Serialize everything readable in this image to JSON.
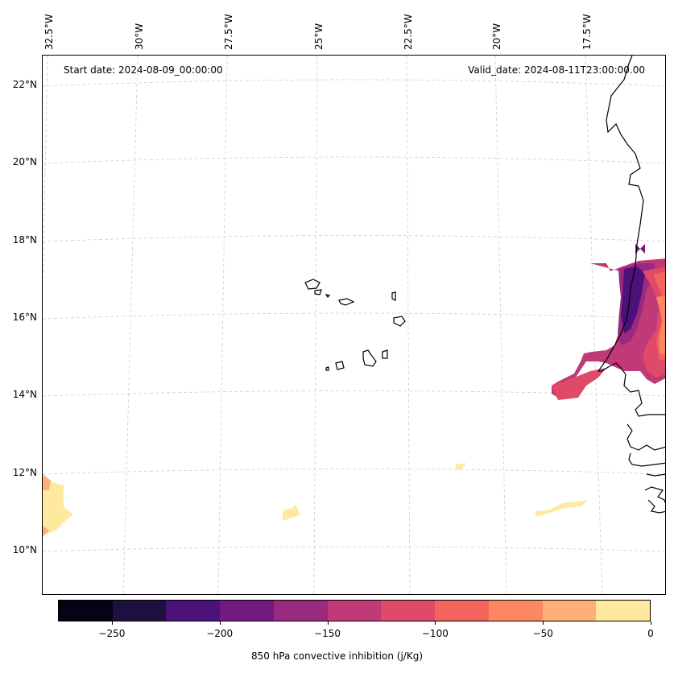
{
  "map": {
    "start_date": "Start date: 2024-08-09_00:00:00",
    "valid_date": "Valid_date: 2024-08-11T23:00:00.00",
    "lon_labels": [
      "32.5°W",
      "30°W",
      "27.5°W",
      "25°W",
      "22.5°W",
      "20°W",
      "17.5°W"
    ],
    "lat_labels": [
      "22°N",
      "20°N",
      "18°N",
      "16°N",
      "14°N",
      "12°N",
      "10°N"
    ],
    "gridlines": true,
    "features": [
      "coastline-west-africa",
      "cape-verde-islands"
    ]
  },
  "colorbar": {
    "label": "850 hPa convective inhibition (j/Kg)",
    "ticks": [
      "−250",
      "−200",
      "−150",
      "−100",
      "−50",
      "0"
    ],
    "range": [
      -275,
      0
    ],
    "step": 25,
    "colors": [
      "#050416",
      "#1e1140",
      "#4d117a",
      "#73197f",
      "#9a2a80",
      "#bf3a77",
      "#df4a68",
      "#f2645c",
      "#fb8860",
      "#feb078",
      "#fee99f"
    ]
  }
}
